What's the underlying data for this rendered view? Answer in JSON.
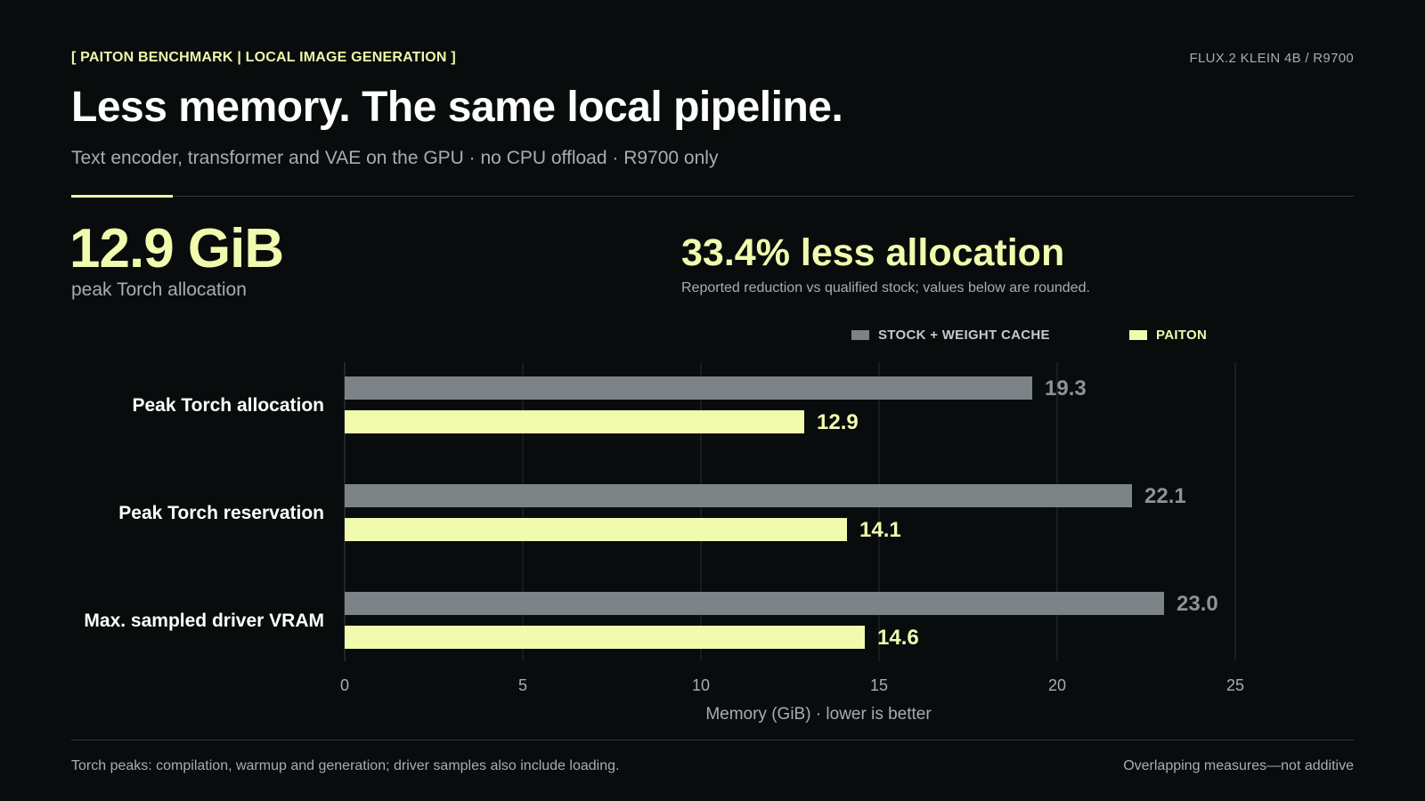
{
  "header": {
    "kicker": "[ PAITON BENCHMARK | LOCAL IMAGE GENERATION ]",
    "model_tag": "FLUX.2 KLEIN 4B / R9700",
    "title": "Less memory. The same local pipeline.",
    "subtitle": "Text encoder, transformer and VAE on the GPU · no CPU offload · R9700 only"
  },
  "stats": {
    "peak_value": "12.9 GiB",
    "peak_label": "peak Torch allocation",
    "reduction": "33.4% less allocation",
    "reduction_note": "Reported reduction vs qualified stock; values below are rounded."
  },
  "colors": {
    "accent": "#f0fbae",
    "stock": "#7b8387",
    "background": "#090c0d"
  },
  "chart_data": {
    "type": "bar",
    "orientation": "horizontal",
    "categories": [
      "Peak Torch allocation",
      "Peak Torch reservation",
      "Max. sampled driver VRAM"
    ],
    "series": [
      {
        "name": "STOCK + WEIGHT CACHE",
        "values": [
          19.3,
          22.1,
          23.0
        ],
        "color": "#7b8387"
      },
      {
        "name": "PAITON",
        "values": [
          12.9,
          14.1,
          14.6
        ],
        "color": "#f0fbae"
      }
    ],
    "value_labels": [
      [
        "19.3",
        "22.1",
        "23.0"
      ],
      [
        "12.9",
        "14.1",
        "14.6"
      ]
    ],
    "xlim": [
      0,
      25
    ],
    "xticks": [
      0,
      5,
      10,
      15,
      20,
      25
    ],
    "xlabel": "Memory (GiB) · lower is better",
    "grid": true,
    "legend": "top-right"
  },
  "footer": {
    "left": "Torch peaks: compilation, warmup and generation; driver samples also include loading.",
    "right": "Overlapping measures—not additive"
  }
}
